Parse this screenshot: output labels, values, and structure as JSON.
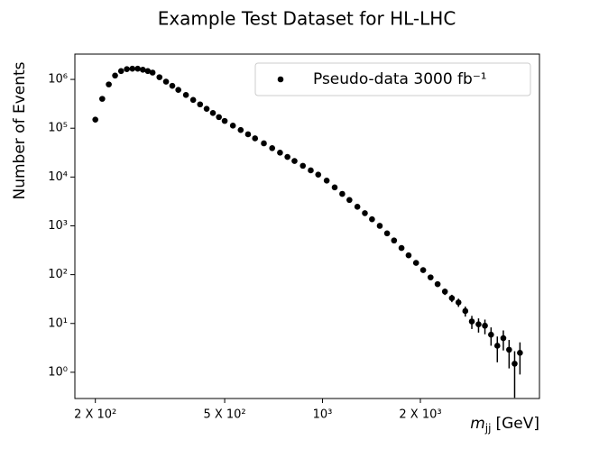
{
  "chart_data": {
    "type": "scatter",
    "title": "Example Test Dataset for HL-LHC",
    "ylabel": "Number of Events",
    "xlabel": {
      "symbol": "m",
      "subscript": "jj",
      "unit": "[GeV]"
    },
    "log_x": true,
    "log_y": true,
    "legend": "upper right",
    "xlim": [
      173,
      4650
    ],
    "ylim": [
      0.29,
      3300000
    ],
    "xticks": [
      {
        "value": 200,
        "label": "2 X 10²"
      },
      {
        "value": 500,
        "label": "5 X 10²"
      },
      {
        "value": 1000,
        "label": "10³"
      },
      {
        "value": 2000,
        "label": "2 X 10³"
      }
    ],
    "yticks": [
      {
        "value": 1,
        "label": "10⁰"
      },
      {
        "value": 10,
        "label": "10¹"
      },
      {
        "value": 100,
        "label": "10²"
      },
      {
        "value": 1000,
        "label": "10³"
      },
      {
        "value": 10000,
        "label": "10⁴"
      },
      {
        "value": 100000,
        "label": "10⁵"
      },
      {
        "value": 1000000,
        "label": "10⁶"
      }
    ],
    "series": [
      {
        "name": "Pseudo-data 3000 fb⁻¹",
        "color": "#000000",
        "x": [
          200,
          210,
          220,
          230,
          240,
          250,
          260,
          270,
          280,
          290,
          300,
          315,
          330,
          345,
          360,
          380,
          400,
          420,
          440,
          460,
          480,
          500,
          530,
          560,
          590,
          620,
          660,
          700,
          740,
          780,
          820,
          870,
          920,
          970,
          1030,
          1090,
          1150,
          1210,
          1280,
          1350,
          1420,
          1500,
          1580,
          1660,
          1750,
          1840,
          1940,
          2040,
          2150,
          2260,
          2380,
          2500,
          2620,
          2750,
          2880,
          3020,
          3160,
          3300,
          3450,
          3600,
          3750,
          3900,
          4050
        ],
        "values": [
          150000,
          400000,
          790000,
          1200000,
          1480000,
          1620000,
          1660000,
          1660000,
          1580000,
          1480000,
          1380000,
          1110000,
          900000,
          740000,
          610000,
          480000,
          380000,
          308000,
          250000,
          205000,
          169000,
          141000,
          113000,
          92000,
          75000,
          62000,
          49000,
          39000,
          31600,
          25800,
          21300,
          17000,
          13700,
          11200,
          8450,
          6140,
          4520,
          3390,
          2460,
          1820,
          1365,
          1000,
          702,
          501,
          351,
          249,
          174,
          124,
          88,
          64,
          45,
          33,
          27,
          18,
          11,
          9.6,
          9,
          5.9,
          3.5,
          5,
          2.9,
          1.5,
          2.5
        ],
        "errors": [
          387,
          632,
          889,
          1095,
          1217,
          1273,
          1288,
          1288,
          1257,
          1217,
          1175,
          1054,
          949,
          860,
          781,
          693,
          616,
          555,
          500,
          453,
          411,
          375,
          336,
          303,
          274,
          249,
          221,
          197,
          178,
          161,
          146,
          130,
          117,
          106,
          92,
          78,
          67,
          58,
          50,
          43,
          37,
          32,
          26,
          22,
          19,
          16,
          13,
          11,
          9.4,
          8,
          6.7,
          5.7,
          5.2,
          4.2,
          3.3,
          3.1,
          3,
          2.4,
          1.9,
          2.2,
          1.7,
          1.2,
          1.6
        ]
      }
    ]
  }
}
